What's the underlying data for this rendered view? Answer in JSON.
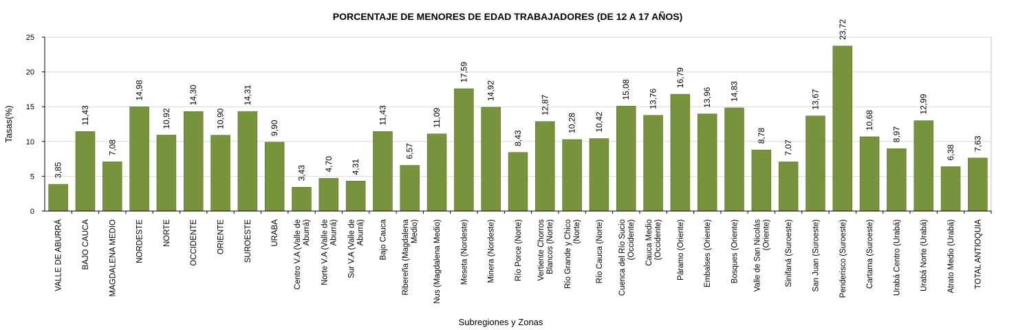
{
  "chart_data": {
    "type": "bar",
    "title": "PORCENTAJE DE MENORES DE EDAD TRABAJADORES (DE 12 A 17 AÑOS)",
    "xlabel": "Subregiones y Zonas",
    "ylabel": "Tasas(%)",
    "ylim": [
      0,
      25
    ],
    "yticks": [
      0,
      5,
      10,
      15,
      20,
      25
    ],
    "grid": true,
    "legend": "none",
    "colors": {
      "bar": "#77933c",
      "bar_edge": "#5a7029",
      "title": "#4f6228",
      "grid": "#d9d9d9",
      "plot_border": "#bfbfbf"
    },
    "categories": [
      [
        "VALLE DE ABURRÁ"
      ],
      [
        "BAJO CAUCA"
      ],
      [
        "MAGDALENA MEDIO"
      ],
      [
        "NORDESTE"
      ],
      [
        "NORTE"
      ],
      [
        "OCCIDENTE"
      ],
      [
        "ORIENTE"
      ],
      [
        "SUROESTE"
      ],
      [
        "URABA"
      ],
      [
        "Centro V.A (Valle de",
        "Aburrá)"
      ],
      [
        "Norte V.A (Valle de",
        "Aburrá)"
      ],
      [
        "Sur V.A (Valle de",
        "Aburrá)"
      ],
      [
        "Bajo Cauca"
      ],
      [
        "Ribereña (Magdalena",
        "Medio)"
      ],
      [
        "Nus (Magdalena Medio)"
      ],
      [
        "Meseta (Nordeste)"
      ],
      [
        "Minera (Nordeste)"
      ],
      [
        "Río Porce (Norte)"
      ],
      [
        "Vertiente Chorros",
        "Blancos (Norte)"
      ],
      [
        "Río Grande y Chico",
        "(Norte)"
      ],
      [
        "Río Cauca (Norte)"
      ],
      [
        "Cuenca del Río Sucio",
        "(Occidente)"
      ],
      [
        "Cauca Medio",
        "(Occidente)"
      ],
      [
        "Páramo (Oriente)"
      ],
      [
        "Embalses (Oriente)"
      ],
      [
        "Bosques (Oriente)"
      ],
      [
        "Valle de San Nicolás",
        "(Oriente)"
      ],
      [
        "Sinifaná (Suroeste)"
      ],
      [
        "San Juan (Suroeste)"
      ],
      [
        "Penderisco (Suroeste)"
      ],
      [
        "Cartama (Suroeste)"
      ],
      [
        "Urabá Centro (Urabá)"
      ],
      [
        "Urabá Norte (Urabá)"
      ],
      [
        "Atrato Medio (Urabá)"
      ],
      [
        "TOTAL ANTIOQUIA"
      ]
    ],
    "values": [
      3.85,
      11.43,
      7.08,
      14.98,
      10.92,
      14.3,
      10.9,
      14.31,
      9.9,
      3.43,
      4.7,
      4.31,
      11.43,
      6.57,
      11.09,
      17.59,
      14.92,
      8.43,
      12.87,
      10.28,
      10.42,
      15.08,
      13.76,
      16.79,
      13.96,
      14.83,
      8.78,
      7.07,
      13.67,
      23.72,
      10.68,
      8.97,
      12.99,
      6.38,
      7.63
    ],
    "value_labels": [
      "3,85",
      "11,43",
      "7,08",
      "14,98",
      "10,92",
      "14,30",
      "10,90",
      "14,31",
      "9,90",
      "3,43",
      "4,70",
      "4,31",
      "11,43",
      "6,57",
      "11,09",
      "17,59",
      "14,92",
      "8,43",
      "12,87",
      "10,28",
      "10,42",
      "15,08",
      "13,76",
      "16,79",
      "13,96",
      "14,83",
      "8,78",
      "7,07",
      "13,67",
      "23,72",
      "10,68",
      "8,97",
      "12,99",
      "6,38",
      "7,63"
    ]
  }
}
